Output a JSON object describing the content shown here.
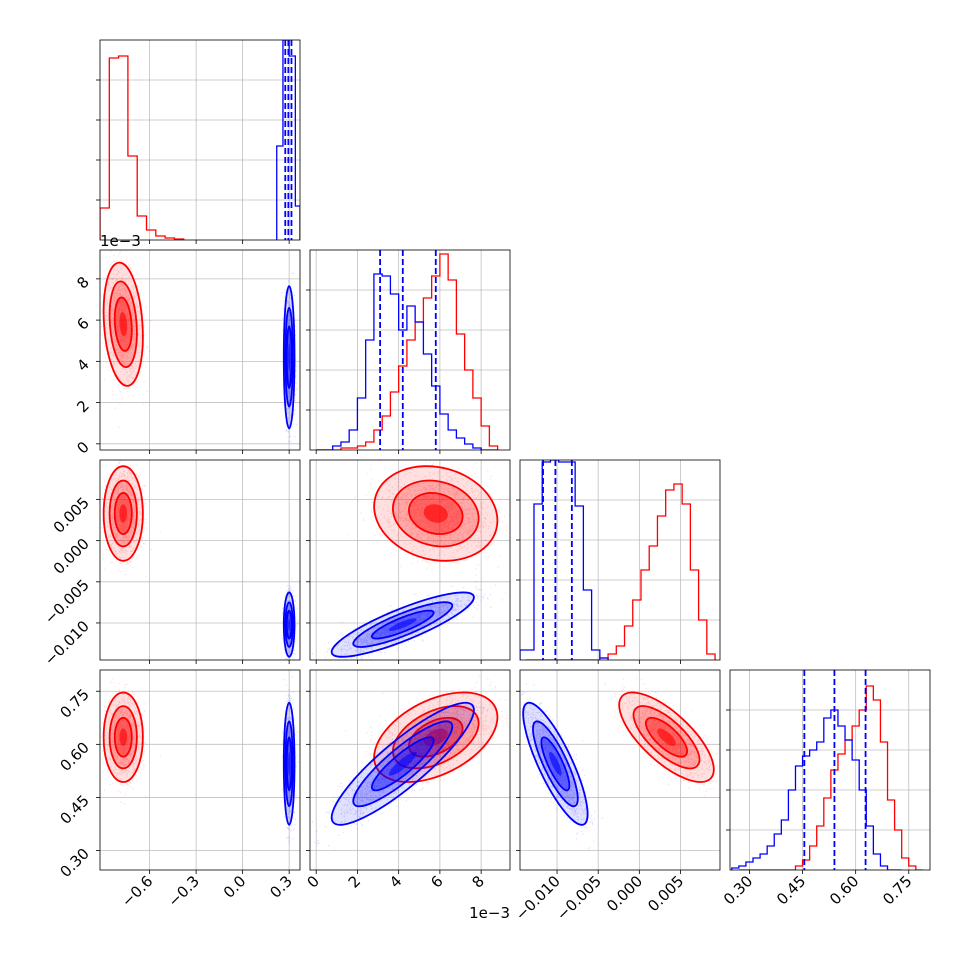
{
  "chart_data": {
    "type": "corner",
    "colors": {
      "red": "#ff0000",
      "blue": "#0000ff",
      "grid": "#b0b0b0",
      "frame": "#000000"
    },
    "parameters": [
      {
        "name": "p0",
        "range": [
          -0.92,
          0.37
        ],
        "ticks": [
          -0.6,
          -0.3,
          0.0,
          0.3
        ],
        "tick_labels": [
          "−0.6",
          "−0.3",
          "0.0",
          "0.3"
        ],
        "offset_label": ""
      },
      {
        "name": "p1",
        "range": [
          -0.0003,
          0.0094
        ],
        "ticks": [
          0,
          0.002,
          0.004,
          0.006,
          0.008
        ],
        "tick_labels": [
          "0",
          "2",
          "4",
          "6",
          "8"
        ],
        "offset_label": "1e−3"
      },
      {
        "name": "p2",
        "range": [
          -0.0145,
          0.0098
        ],
        "ticks": [
          -0.01,
          -0.005,
          0.0,
          0.005
        ],
        "tick_labels": [
          "−0.010",
          "−0.005",
          "0.000",
          "0.005"
        ],
        "offset_label": ""
      },
      {
        "name": "p3",
        "range": [
          0.245,
          0.81
        ],
        "ticks": [
          0.3,
          0.45,
          0.6,
          0.75
        ],
        "tick_labels": [
          "0.30",
          "0.45",
          "0.60",
          "0.75"
        ],
        "offset_label": ""
      }
    ],
    "histograms": [
      {
        "param": 0,
        "red": {
          "bins": [
            -0.92,
            -0.86,
            -0.8,
            -0.74,
            -0.68,
            -0.62,
            -0.56,
            -0.5,
            -0.44,
            -0.38
          ],
          "counts": [
            0.16,
            0.91,
            0.92,
            0.42,
            0.12,
            0.05,
            0.02,
            0.01,
            0.005
          ]
        },
        "blue": {
          "bins": [
            0.22,
            0.26,
            0.3,
            0.34,
            0.37
          ],
          "counts": [
            0.47,
            1.0,
            0.92,
            0.17
          ]
        },
        "quantiles_blue": [
          0.275,
          0.295,
          0.315
        ],
        "ylim": [
          0,
          1.0
        ]
      },
      {
        "param": 1,
        "red": {
          "bins": [
            0.0,
            0.0004,
            0.0008,
            0.0012,
            0.0016,
            0.002,
            0.0024,
            0.0028,
            0.0032,
            0.0036,
            0.004,
            0.0044,
            0.0048,
            0.0052,
            0.0056,
            0.006,
            0.0064,
            0.0068,
            0.0072,
            0.0076,
            0.008,
            0.0084,
            0.0088
          ],
          "counts": [
            0.0,
            0.0,
            0.0,
            0.01,
            0.01,
            0.02,
            0.04,
            0.1,
            0.17,
            0.29,
            0.42,
            0.55,
            0.64,
            0.76,
            0.87,
            0.98,
            0.85,
            0.58,
            0.4,
            0.26,
            0.12,
            0.02
          ]
        },
        "blue": {
          "bins": [
            0.0,
            0.0004,
            0.0008,
            0.0012,
            0.0016,
            0.002,
            0.0024,
            0.0028,
            0.0032,
            0.0036,
            0.004,
            0.0044,
            0.0048,
            0.0052,
            0.0056,
            0.006,
            0.0064,
            0.0068,
            0.0072,
            0.0076,
            0.008,
            0.0084,
            0.0088
          ],
          "counts": [
            0.0,
            0.0,
            0.02,
            0.04,
            0.1,
            0.26,
            0.55,
            0.88,
            0.87,
            0.78,
            0.6,
            0.72,
            0.64,
            0.48,
            0.32,
            0.18,
            0.1,
            0.06,
            0.03,
            0.01,
            0.0,
            0.0
          ]
        },
        "quantiles_blue": [
          0.0031,
          0.0042,
          0.0058
        ],
        "ylim": [
          0,
          1.0
        ]
      },
      {
        "param": 2,
        "red": {
          "bins": [
            -0.0138,
            -0.0128,
            -0.0118,
            -0.0108,
            -0.0098,
            -0.0088,
            -0.0078,
            -0.0068,
            -0.0058,
            -0.0048,
            -0.0038,
            -0.0028,
            -0.0018,
            -0.0008,
            0.0002,
            0.0012,
            0.0022,
            0.0032,
            0.0042,
            0.0052,
            0.0062,
            0.0072,
            0.0082,
            0.0092
          ],
          "counts": [
            0,
            0,
            0,
            0,
            0,
            0,
            0,
            0,
            0,
            0.01,
            0.03,
            0.07,
            0.17,
            0.3,
            0.45,
            0.57,
            0.72,
            0.85,
            0.88,
            0.78,
            0.45,
            0.2,
            0.03
          ]
        },
        "blue": {
          "bins": [
            -0.0145,
            -0.0128,
            -0.0118,
            -0.0108,
            -0.0098,
            -0.0088,
            -0.0078,
            -0.0068,
            -0.0058,
            -0.0048,
            -0.0038
          ],
          "counts": [
            0.05,
            0.78,
            0.99,
            1.0,
            0.99,
            0.99,
            0.77,
            0.35,
            0.05,
            0.01
          ]
        },
        "quantiles_blue": [
          -0.0117,
          -0.0102,
          -0.0082
        ],
        "ylim": [
          0,
          1.0
        ]
      },
      {
        "param": 3,
        "red": {
          "bins": [
            0.27,
            0.29,
            0.31,
            0.33,
            0.35,
            0.37,
            0.39,
            0.41,
            0.43,
            0.45,
            0.47,
            0.49,
            0.51,
            0.53,
            0.55,
            0.57,
            0.59,
            0.61,
            0.63,
            0.65,
            0.67,
            0.69,
            0.71,
            0.73,
            0.75,
            0.77,
            0.79
          ],
          "counts": [
            0,
            0,
            0,
            0,
            0,
            0,
            0,
            0,
            0.02,
            0.05,
            0.12,
            0.22,
            0.36,
            0.5,
            0.58,
            0.65,
            0.72,
            0.8,
            0.92,
            0.85,
            0.64,
            0.35,
            0.2,
            0.06,
            0.02,
            0.0
          ]
        },
        "blue": {
          "bins": [
            0.25,
            0.27,
            0.29,
            0.31,
            0.33,
            0.35,
            0.37,
            0.39,
            0.41,
            0.43,
            0.45,
            0.47,
            0.49,
            0.51,
            0.53,
            0.55,
            0.57,
            0.59,
            0.61,
            0.63,
            0.65,
            0.67,
            0.69,
            0.71,
            0.73
          ],
          "counts": [
            0.01,
            0.02,
            0.04,
            0.06,
            0.08,
            0.12,
            0.18,
            0.25,
            0.4,
            0.52,
            0.57,
            0.6,
            0.64,
            0.76,
            0.8,
            0.72,
            0.65,
            0.55,
            0.4,
            0.22,
            0.08,
            0.02,
            0.0,
            0.0
          ]
        },
        "quantiles_blue": [
          0.455,
          0.54,
          0.628
        ],
        "ylim": [
          0,
          1.0
        ]
      }
    ],
    "populations": [
      {
        "color": "red",
        "mean": [
          -0.77,
          0.0058,
          0.0033,
          0.62
        ],
        "std": [
          0.055,
          0.0013,
          0.0025,
          0.055
        ],
        "corr": {
          "0-1": -0.2,
          "0-2": 0.0,
          "0-3": 0.0,
          "1-2": -0.15,
          "1-3": 0.45,
          "2-3": -0.72
        }
      },
      {
        "color": "blue",
        "mean": [
          0.3,
          0.0042,
          -0.0102,
          0.545
        ],
        "std": [
          0.015,
          0.0015,
          0.0017,
          0.075
        ],
        "corr": {
          "0-1": 0.0,
          "0-2": 0.0,
          "0-3": 0.0,
          "1-2": 0.85,
          "1-3": 0.88,
          "2-3": -0.82
        }
      }
    ],
    "xlabel": "",
    "ylabel": "",
    "title": "",
    "grid": true,
    "legend": "none"
  }
}
